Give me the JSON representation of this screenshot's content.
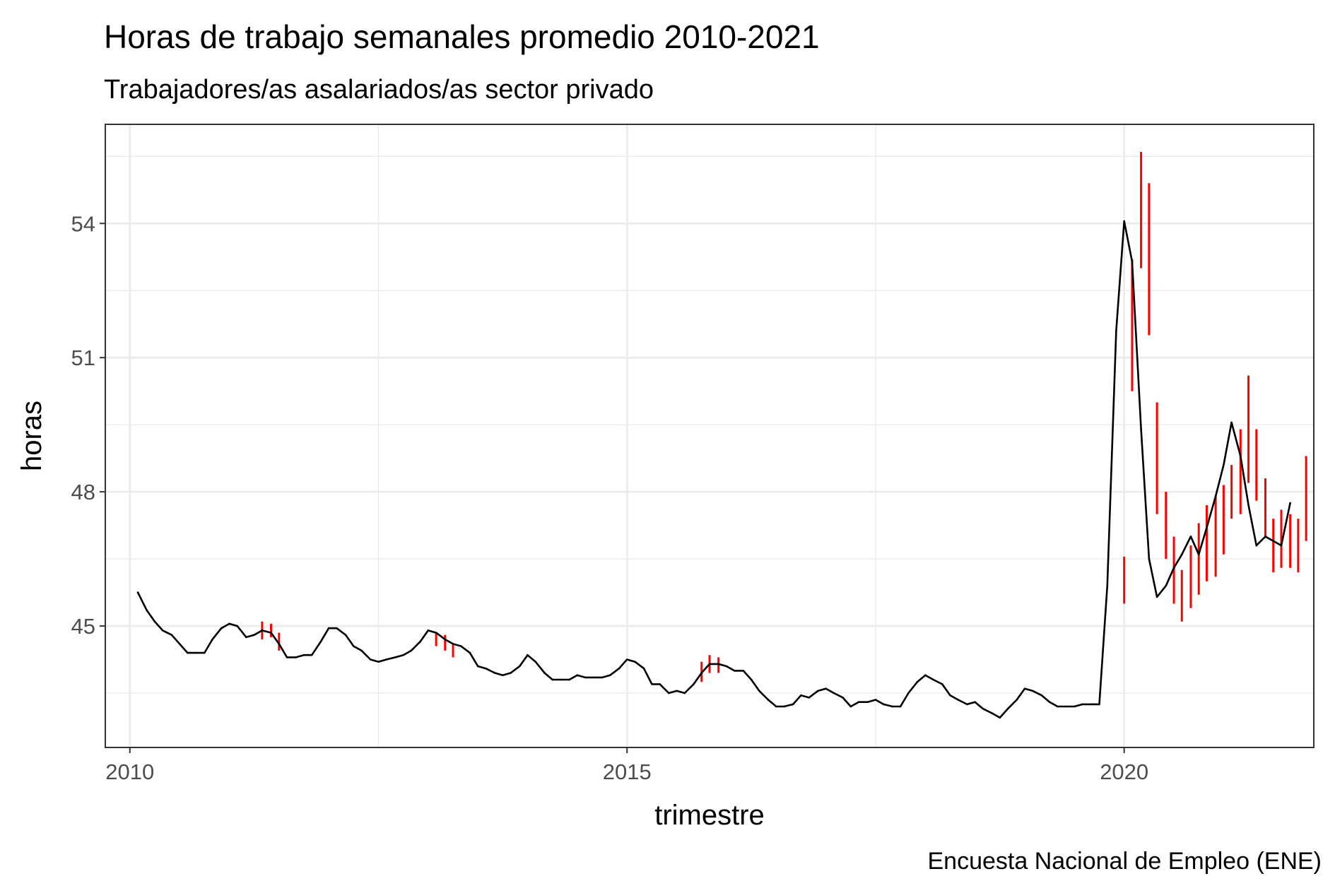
{
  "title": "Horas de trabajo semanales promedio 2010-2021",
  "subtitle": "Trabajadores/as asalariados/as sector privado",
  "caption": "Encuesta Nacional de Empleo (ENE)",
  "colors": {
    "line": "#000000",
    "errorbar": "#ff0000",
    "grid": "#ebebeb",
    "panel_border": "#333333",
    "tick_text": "#4d4d4d"
  },
  "chart_data": {
    "type": "line",
    "xlabel": "trimestre",
    "ylabel": "horas",
    "xlim": [
      2009.76,
      2021.9
    ],
    "ylim": [
      42.3,
      56.2
    ],
    "x_ticks": [
      2010,
      2015,
      2020
    ],
    "x_tick_labels": [
      "2010",
      "2015",
      "2020"
    ],
    "y_ticks": [
      45,
      48,
      51,
      54
    ],
    "y_tick_labels": [
      "45",
      "48",
      "51",
      "54"
    ],
    "grid": true,
    "x": [
      2010.08,
      2010.17,
      2010.25,
      2010.33,
      2010.42,
      2010.5,
      2010.58,
      2010.67,
      2010.75,
      2010.83,
      2010.92,
      2011,
      2011.08,
      2011.17,
      2011.25,
      2011.33,
      2011.42,
      2011.5,
      2011.58,
      2011.67,
      2011.75,
      2011.83,
      2011.92,
      2012,
      2012.08,
      2012.17,
      2012.25,
      2012.33,
      2012.42,
      2012.5,
      2012.58,
      2012.67,
      2012.75,
      2012.83,
      2012.92,
      2013,
      2013.08,
      2013.17,
      2013.25,
      2013.33,
      2013.42,
      2013.5,
      2013.58,
      2013.67,
      2013.75,
      2013.83,
      2013.92,
      2014,
      2014.08,
      2014.17,
      2014.25,
      2014.33,
      2014.42,
      2014.5,
      2014.58,
      2014.67,
      2014.75,
      2014.83,
      2014.92,
      2015,
      2015.08,
      2015.17,
      2015.25,
      2015.33,
      2015.42,
      2015.5,
      2015.58,
      2015.67,
      2015.75,
      2015.83,
      2015.92,
      2016,
      2016.08,
      2016.17,
      2016.25,
      2016.33,
      2016.42,
      2016.5,
      2016.58,
      2016.67,
      2016.75,
      2016.83,
      2016.92,
      2017,
      2017.08,
      2017.17,
      2017.25,
      2017.33,
      2017.42,
      2017.5,
      2017.58,
      2017.67,
      2017.75,
      2017.83,
      2017.92,
      2018,
      2018.08,
      2018.17,
      2018.25,
      2018.33,
      2018.42,
      2018.5,
      2018.58,
      2018.67,
      2018.75,
      2018.83,
      2018.92,
      2019,
      2019.08,
      2019.17,
      2019.25,
      2019.33,
      2019.42,
      2019.5,
      2019.58,
      2019.67,
      2019.75,
      2019.83,
      2019.92,
      2020,
      2020.08,
      2020.17,
      2020.25,
      2020.33,
      2020.42,
      2020.5,
      2020.58,
      2020.67,
      2020.75,
      2020.83,
      2020.92,
      2021,
      2021.08,
      2021.17,
      2021.25,
      2021.33,
      2021.42,
      2021.5,
      2021.58,
      2021.67
    ],
    "values": [
      45.75,
      45.35,
      45.1,
      44.9,
      44.8,
      44.6,
      44.4,
      44.4,
      44.4,
      44.7,
      44.95,
      45.05,
      45.0,
      44.75,
      44.8,
      44.9,
      44.85,
      44.6,
      44.3,
      44.3,
      44.35,
      44.35,
      44.65,
      44.95,
      44.95,
      44.8,
      44.55,
      44.45,
      44.25,
      44.2,
      44.25,
      44.3,
      44.35,
      44.45,
      44.65,
      44.9,
      44.85,
      44.7,
      44.6,
      44.55,
      44.4,
      44.1,
      44.05,
      43.95,
      43.9,
      43.95,
      44.1,
      44.35,
      44.2,
      43.95,
      43.8,
      43.8,
      43.8,
      43.9,
      43.85,
      43.85,
      43.85,
      43.9,
      44.05,
      44.25,
      44.2,
      44.05,
      43.7,
      43.7,
      43.5,
      43.55,
      43.5,
      43.7,
      43.95,
      44.15,
      44.15,
      44.1,
      44.0,
      44.0,
      43.8,
      43.55,
      43.35,
      43.2,
      43.2,
      43.25,
      43.45,
      43.4,
      43.55,
      43.6,
      43.5,
      43.4,
      43.2,
      43.3,
      43.3,
      43.35,
      43.25,
      43.2,
      43.2,
      43.5,
      43.75,
      43.9,
      43.8,
      43.7,
      43.45,
      43.35,
      43.25,
      43.3,
      43.15,
      43.05,
      42.95,
      43.15,
      43.35,
      43.6,
      43.55,
      43.45,
      43.3,
      43.2,
      43.2,
      43.2,
      43.25,
      43.25,
      43.25,
      45.9,
      51.6,
      54.05,
      53.15,
      49.4,
      46.5,
      45.65,
      45.9,
      46.3,
      46.6,
      47.0,
      46.6,
      47.2,
      47.9,
      48.6,
      49.55,
      48.8,
      47.7,
      46.8,
      47.0,
      46.9,
      46.8,
      47.75
    ],
    "errorbars": [
      {
        "x": 2020.0,
        "lo": 45.5,
        "hi": 46.55
      },
      {
        "x": 2020.08,
        "lo": 50.25,
        "hi": 53.2
      },
      {
        "x": 2020.17,
        "lo": 53.0,
        "hi": 55.6
      },
      {
        "x": 2020.25,
        "lo": 51.5,
        "hi": 54.9
      },
      {
        "x": 2020.33,
        "lo": 47.5,
        "hi": 50.0
      },
      {
        "x": 2020.42,
        "lo": 46.5,
        "hi": 48.0
      },
      {
        "x": 2020.5,
        "lo": 45.5,
        "hi": 47.0
      },
      {
        "x": 2020.58,
        "lo": 45.1,
        "hi": 46.25
      },
      {
        "x": 2020.67,
        "lo": 45.4,
        "hi": 46.8
      },
      {
        "x": 2020.75,
        "lo": 45.7,
        "hi": 47.3
      },
      {
        "x": 2020.83,
        "lo": 46.0,
        "hi": 47.7
      },
      {
        "x": 2020.92,
        "lo": 46.1,
        "hi": 47.9
      },
      {
        "x": 2021.0,
        "lo": 46.6,
        "hi": 48.15
      },
      {
        "x": 2021.08,
        "lo": 47.4,
        "hi": 48.6
      },
      {
        "x": 2021.17,
        "lo": 47.5,
        "hi": 49.4
      },
      {
        "x": 2021.25,
        "lo": 48.2,
        "hi": 50.6
      },
      {
        "x": 2021.33,
        "lo": 47.8,
        "hi": 49.4
      },
      {
        "x": 2021.42,
        "lo": 47.0,
        "hi": 48.3
      },
      {
        "x": 2021.5,
        "lo": 46.2,
        "hi": 47.4
      },
      {
        "x": 2021.58,
        "lo": 46.3,
        "hi": 47.6
      },
      {
        "x": 2021.67,
        "lo": 46.3,
        "hi": 47.5
      },
      {
        "x": 2021.75,
        "lo": 46.2,
        "hi": 47.4
      },
      {
        "x": 2021.83,
        "lo": 46.9,
        "hi": 48.8
      },
      {
        "x": 2011.33,
        "lo": 44.7,
        "hi": 45.1
      },
      {
        "x": 2011.42,
        "lo": 44.75,
        "hi": 45.05
      },
      {
        "x": 2011.5,
        "lo": 44.45,
        "hi": 44.85
      },
      {
        "x": 2013.08,
        "lo": 44.55,
        "hi": 44.85
      },
      {
        "x": 2013.17,
        "lo": 44.45,
        "hi": 44.8
      },
      {
        "x": 2013.25,
        "lo": 44.3,
        "hi": 44.6
      },
      {
        "x": 2015.75,
        "lo": 43.75,
        "hi": 44.2
      },
      {
        "x": 2015.83,
        "lo": 43.95,
        "hi": 44.35
      },
      {
        "x": 2015.92,
        "lo": 43.95,
        "hi": 44.3
      }
    ]
  }
}
